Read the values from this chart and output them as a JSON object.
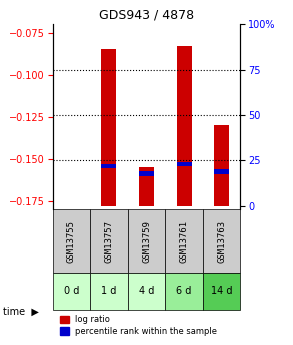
{
  "title": "GDS943 / 4878",
  "samples": [
    "GSM13755",
    "GSM13757",
    "GSM13759",
    "GSM13761",
    "GSM13763"
  ],
  "time_labels": [
    "0 d",
    "1 d",
    "4 d",
    "6 d",
    "14 d"
  ],
  "log_ratio": [
    null,
    -0.085,
    -0.155,
    -0.083,
    -0.13
  ],
  "percentile_rank": [
    null,
    22,
    18,
    23,
    19
  ],
  "y_min": -0.18,
  "y_max": -0.07,
  "y_ticks": [
    -0.175,
    -0.15,
    -0.125,
    -0.1,
    -0.075
  ],
  "pct_min": 0,
  "pct_max": 100,
  "pct_ticks": [
    0,
    25,
    50,
    75,
    100
  ],
  "bar_bottom": -0.178,
  "bar_width": 0.4,
  "red_color": "#cc0000",
  "blue_color": "#0000cc",
  "grid_color": "#000000",
  "gsm_bg": "#cccccc",
  "time_bg_colors": [
    "#ccffcc",
    "#ccffcc",
    "#ccffcc",
    "#99ee99",
    "#55cc55"
  ],
  "legend_red": "log ratio",
  "legend_blue": "percentile rank within the sample",
  "time_label": "time"
}
